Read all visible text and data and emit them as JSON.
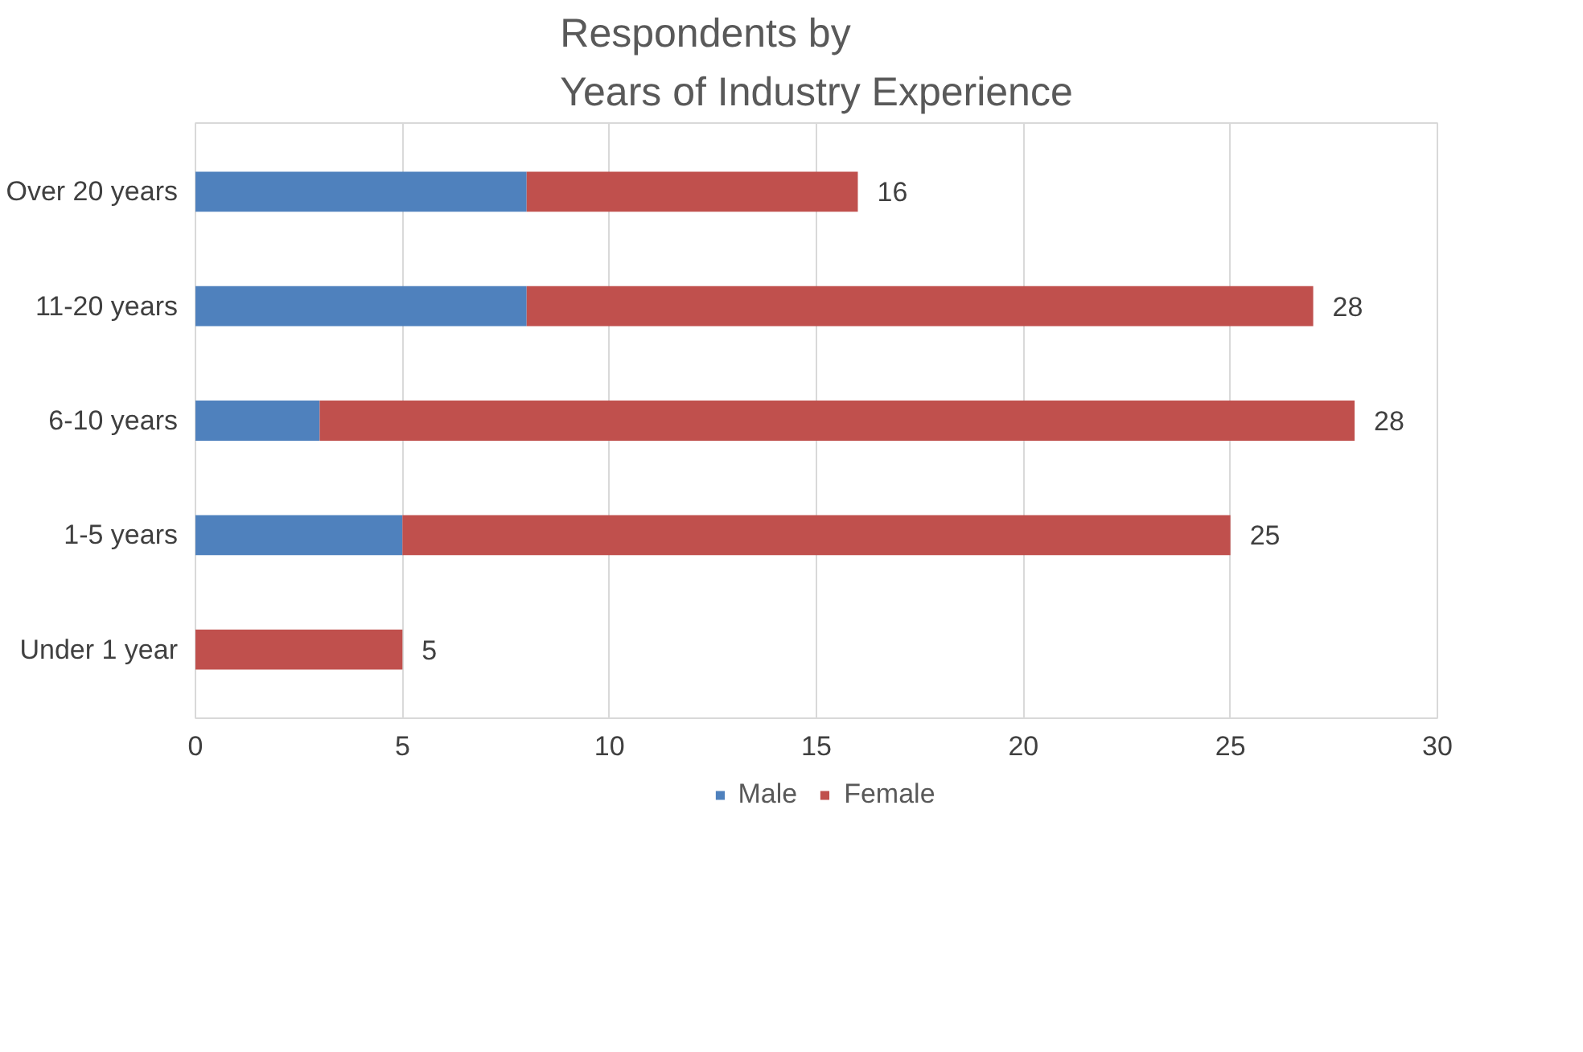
{
  "chart_data": {
    "type": "bar",
    "orientation": "horizontal",
    "stacked": true,
    "title": "Respondents by\nYears of Industry Experience",
    "categories": [
      "Over 20 years",
      "11-20 years",
      "6-10 years",
      "1-5 years",
      "Under 1 year"
    ],
    "series": [
      {
        "name": "Male",
        "color": "#4f81bd",
        "values": [
          8,
          8,
          3,
          5,
          0
        ]
      },
      {
        "name": "Female",
        "color": "#c0504d",
        "values": [
          8,
          19,
          25,
          20,
          5
        ]
      }
    ],
    "totals": [
      "16",
      "28",
      "28",
      "25",
      "5"
    ],
    "xlim": [
      0,
      30
    ],
    "xticks": [
      0,
      5,
      10,
      15,
      20,
      25,
      30
    ],
    "grid": "x",
    "legend": "bottom"
  }
}
